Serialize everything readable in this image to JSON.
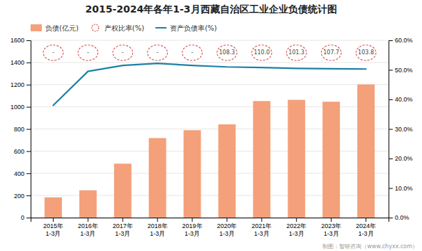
{
  "chart_data": {
    "type": "bar",
    "title": "2015-2024年各年1-3月西藏自治区工业企业负债统计图",
    "categories": [
      "2015年\n1-3月",
      "2016年\n1-3月",
      "2017年\n1-3月",
      "2018年\n1-3月",
      "2019年\n1-3月",
      "2020年\n1-3月",
      "2021年\n1-3月",
      "2022年\n1-3月",
      "2023年\n1-3月",
      "2024年\n1-3月"
    ],
    "series": [
      {
        "name": "负债(亿元)",
        "type": "bar",
        "color": "#F4A07A",
        "values": [
          183,
          247,
          487,
          718,
          789,
          842,
          1052,
          1063,
          1046,
          1202
        ]
      },
      {
        "name": "产权比率(%)",
        "type": "text",
        "color": "#D94F4F",
        "marker": "circle",
        "line_style": "dashed",
        "data_labels": true,
        "values": [
          null,
          null,
          null,
          null,
          null,
          108.3,
          110.0,
          101.3,
          107.7,
          103.8
        ],
        "value_labels": [
          "-",
          "-",
          "-",
          "-",
          "-",
          "108.3",
          "110.0",
          "101.3",
          "107.7",
          "103.8"
        ]
      },
      {
        "name": "资产负债率(%)",
        "type": "line",
        "axis": "y2",
        "color": "#1B7FA3",
        "values": [
          0.38,
          0.495,
          0.515,
          0.522,
          0.515,
          0.51,
          0.508,
          0.505,
          0.504,
          0.503
        ]
      }
    ],
    "ylim": [
      0,
      1600
    ],
    "yticks": [
      0,
      200,
      400,
      600,
      800,
      1000,
      1200,
      1400,
      1600
    ],
    "y2lim": [
      0,
      0.6
    ],
    "y2ticks": [
      {
        "value": 0.0,
        "label": "0.0%"
      },
      {
        "value": 0.1,
        "label": "10.0%"
      },
      {
        "value": 0.2,
        "label": "20.0%"
      },
      {
        "value": 0.3,
        "label": "30.0%"
      },
      {
        "value": 0.4,
        "label": "40.0%"
      },
      {
        "value": 0.5,
        "label": "50.0%"
      },
      {
        "value": 0.6,
        "label": "60.0%"
      }
    ],
    "grid": true,
    "legend": "top-left",
    "annotations": [
      "制图：智研咨询（www.chyxx.com）"
    ]
  }
}
